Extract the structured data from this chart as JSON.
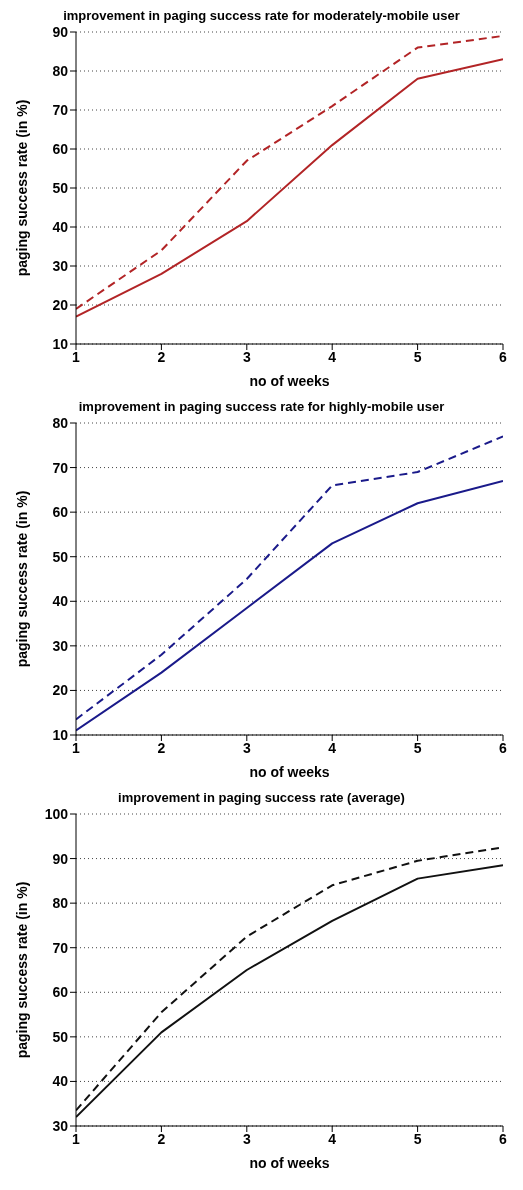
{
  "chart_data": [
    {
      "type": "line",
      "title": "improvement in paging success rate for moderately-mobile user",
      "xlabel": "no of weeks",
      "ylabel": "paging success rate (in %)",
      "x": [
        1,
        2,
        3,
        4,
        5,
        6
      ],
      "xlim": [
        1,
        6
      ],
      "xticks": [
        1,
        2,
        3,
        4,
        5,
        6
      ],
      "ylim": [
        10,
        90
      ],
      "yticks": [
        10,
        20,
        30,
        40,
        50,
        60,
        70,
        80,
        90
      ],
      "grid": "y",
      "series": [
        {
          "color": "#b22426",
          "line_style": "dashed",
          "values": [
            19,
            34,
            57,
            71,
            86,
            89
          ]
        },
        {
          "color": "#b22426",
          "line_style": "solid",
          "values": [
            17,
            28,
            41.5,
            61,
            78,
            83
          ]
        }
      ]
    },
    {
      "type": "line",
      "title": "improvement in paging success rate for highly-mobile user",
      "xlabel": "no of weeks",
      "ylabel": "paging success rate (in %)",
      "x": [
        1,
        2,
        3,
        4,
        5,
        6
      ],
      "xlim": [
        1,
        6
      ],
      "xticks": [
        1,
        2,
        3,
        4,
        5,
        6
      ],
      "ylim": [
        10,
        80
      ],
      "yticks": [
        10,
        20,
        30,
        40,
        50,
        60,
        70,
        80
      ],
      "grid": "y",
      "series": [
        {
          "color": "#1a1a8a",
          "line_style": "dashed",
          "values": [
            13.5,
            28,
            45,
            66,
            69,
            77
          ]
        },
        {
          "color": "#1a1a8a",
          "line_style": "solid",
          "values": [
            11,
            24,
            38.5,
            53,
            62,
            67
          ]
        }
      ]
    },
    {
      "type": "line",
      "title": "improvement in paging success rate (average)",
      "xlabel": "no of weeks",
      "ylabel": "paging success rate (in %)",
      "x": [
        1,
        2,
        3,
        4,
        5,
        6
      ],
      "xlim": [
        1,
        6
      ],
      "xticks": [
        1,
        2,
        3,
        4,
        5,
        6
      ],
      "ylim": [
        30,
        100
      ],
      "yticks": [
        30,
        40,
        50,
        60,
        70,
        80,
        90,
        100
      ],
      "grid": "y",
      "series": [
        {
          "color": "#111111",
          "line_style": "dashed",
          "values": [
            33.5,
            55.5,
            72.5,
            84,
            89.5,
            92.5
          ]
        },
        {
          "color": "#111111",
          "line_style": "solid",
          "values": [
            32,
            51,
            65,
            76,
            85.5,
            88.5
          ]
        }
      ]
    }
  ]
}
